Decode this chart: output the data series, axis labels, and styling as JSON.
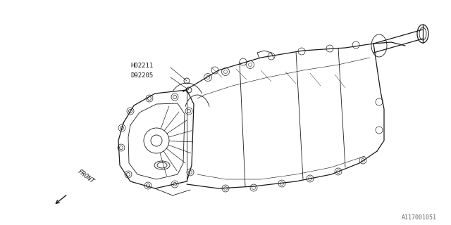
{
  "bg_color": "#ffffff",
  "line_color": "#1a1a1a",
  "label_color": "#1a1a1a",
  "part_number_color": "#666666",
  "label1": "H02211",
  "label2": "D92205",
  "front_label": "FRONT",
  "part_number": "A117001051",
  "fig_width": 6.4,
  "fig_height": 3.2,
  "dpi": 100
}
